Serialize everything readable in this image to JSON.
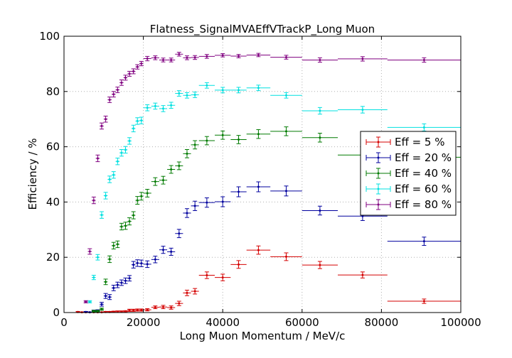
{
  "chart_data": {
    "type": "scatter",
    "title": "Flatness_SignalMVAEffVTrackP_Long Muon",
    "xlabel": "Long Muon Momentum / MeV/c",
    "ylabel": "Efficiency / %",
    "xlim": [
      0,
      100000
    ],
    "ylim": [
      0,
      100
    ],
    "grid": true,
    "legend_position": "right",
    "x_ticks": [
      0,
      20000,
      40000,
      60000,
      80000,
      100000
    ],
    "y_ticks": [
      0,
      20,
      40,
      60,
      80,
      100
    ],
    "x_bin_edges": [
      2000,
      3000,
      4000,
      5000,
      6000,
      7000,
      8000,
      9000,
      10000,
      11000,
      12000,
      13000,
      14000,
      15000,
      16000,
      17000,
      18000,
      19000,
      20000,
      22000,
      24000,
      26000,
      28000,
      30000,
      32000,
      34000,
      38000,
      42000,
      46000,
      52000,
      60000,
      69000,
      81500,
      100000
    ],
    "series": [
      {
        "name": "Eff = 5 %",
        "color": "#d40000",
        "values": [
          0.2,
          0.1,
          0.1,
          0.1,
          0.1,
          0.1,
          0.1,
          0.2,
          0.2,
          0.3,
          0.3,
          0.3,
          0.4,
          0.8,
          0.8,
          0.9,
          0.9,
          1.0,
          1.9,
          2.0,
          1.8,
          3.3,
          7.1,
          7.7,
          13.5,
          12.7,
          17.4,
          22.6,
          20.2,
          17.2,
          13.6,
          4.1
        ],
        "errors": [
          0.2,
          0.1,
          0.1,
          0.1,
          0.1,
          0.1,
          0.1,
          0.2,
          0.2,
          0.2,
          0.3,
          0.3,
          0.3,
          0.4,
          0.4,
          0.4,
          0.4,
          0.4,
          0.5,
          0.6,
          0.6,
          0.8,
          1.0,
          1.0,
          1.2,
          1.2,
          1.4,
          1.5,
          1.4,
          1.3,
          1.1,
          0.8
        ]
      },
      {
        "name": "Eff = 20 %",
        "color": "#00009e",
        "values": [
          0.2,
          0.1,
          0.6,
          0.7,
          3.0,
          6.0,
          5.6,
          8.9,
          10.0,
          10.8,
          11.5,
          12.4,
          17.3,
          17.9,
          17.8,
          17.5,
          19.2,
          22.7,
          22.0,
          28.6,
          36.0,
          38.6,
          39.8,
          40.1,
          43.7,
          45.5,
          44.0,
          36.9,
          34.9,
          25.8
        ],
        "errors": [
          0.2,
          0.1,
          0.3,
          0.3,
          0.7,
          0.9,
          0.9,
          1.0,
          1.0,
          1.0,
          1.0,
          1.0,
          1.2,
          1.2,
          1.2,
          1.2,
          1.2,
          1.3,
          1.3,
          1.5,
          1.6,
          1.7,
          1.7,
          1.8,
          1.8,
          1.8,
          1.8,
          1.6,
          1.6,
          1.5
        ]
      },
      {
        "name": "Eff = 40 %",
        "color": "#007a00",
        "values": [
          0.5,
          0.5,
          1.2,
          11.1,
          19.3,
          24.2,
          24.7,
          31.1,
          31.4,
          33.0,
          35.2,
          40.6,
          42.1,
          43.2,
          47.4,
          47.9,
          51.8,
          53.1,
          57.5,
          60.7,
          62.2,
          64.2,
          62.6,
          64.6,
          65.6,
          63.3,
          57.0,
          56.2
        ],
        "errors": [
          0.3,
          0.3,
          0.4,
          1.0,
          1.2,
          1.2,
          1.2,
          1.2,
          1.3,
          1.3,
          1.3,
          1.4,
          1.4,
          1.4,
          1.4,
          1.4,
          1.4,
          1.4,
          1.5,
          1.5,
          1.5,
          1.5,
          1.5,
          1.6,
          1.6,
          1.6,
          1.6,
          1.6
        ]
      },
      {
        "name": "Eff = 60 %",
        "color": "#00e0e0",
        "values": [
          3.9,
          12.7,
          20.0,
          35.3,
          42.3,
          48.2,
          49.8,
          54.7,
          57.8,
          58.9,
          62.1,
          66.6,
          69.3,
          69.5,
          74.1,
          74.7,
          73.8,
          75.0,
          79.3,
          78.6,
          78.8,
          82.2,
          80.5,
          80.5,
          81.3,
          78.6,
          73.0,
          73.4,
          67.0
        ],
        "errors": [
          0.4,
          0.8,
          1.0,
          1.2,
          1.2,
          1.2,
          1.2,
          1.2,
          1.2,
          1.2,
          1.2,
          1.2,
          1.2,
          1.2,
          1.1,
          1.1,
          1.1,
          1.1,
          1.0,
          1.0,
          1.0,
          1.0,
          1.0,
          1.0,
          1.0,
          1.0,
          1.2,
          1.2,
          1.3
        ]
      },
      {
        "name": "Eff = 80 %",
        "color": "#800080",
        "values": [
          3.9,
          22.1,
          40.6,
          55.8,
          67.5,
          70.0,
          77.0,
          79.0,
          80.6,
          83.2,
          85.0,
          86.4,
          87.3,
          88.9,
          90.1,
          91.9,
          92.2,
          91.4,
          91.4,
          93.5,
          92.2,
          92.3,
          92.7,
          93.1,
          92.8,
          93.2,
          92.4,
          91.4,
          91.8,
          91.4
        ],
        "errors": [
          0.4,
          1.0,
          1.2,
          1.2,
          1.1,
          1.1,
          1.0,
          1.0,
          1.0,
          1.0,
          0.9,
          0.9,
          0.9,
          0.8,
          0.8,
          0.8,
          0.7,
          0.7,
          0.7,
          0.7,
          0.7,
          0.7,
          0.7,
          0.6,
          0.6,
          0.6,
          0.7,
          0.8,
          0.8,
          0.8
        ]
      }
    ]
  }
}
